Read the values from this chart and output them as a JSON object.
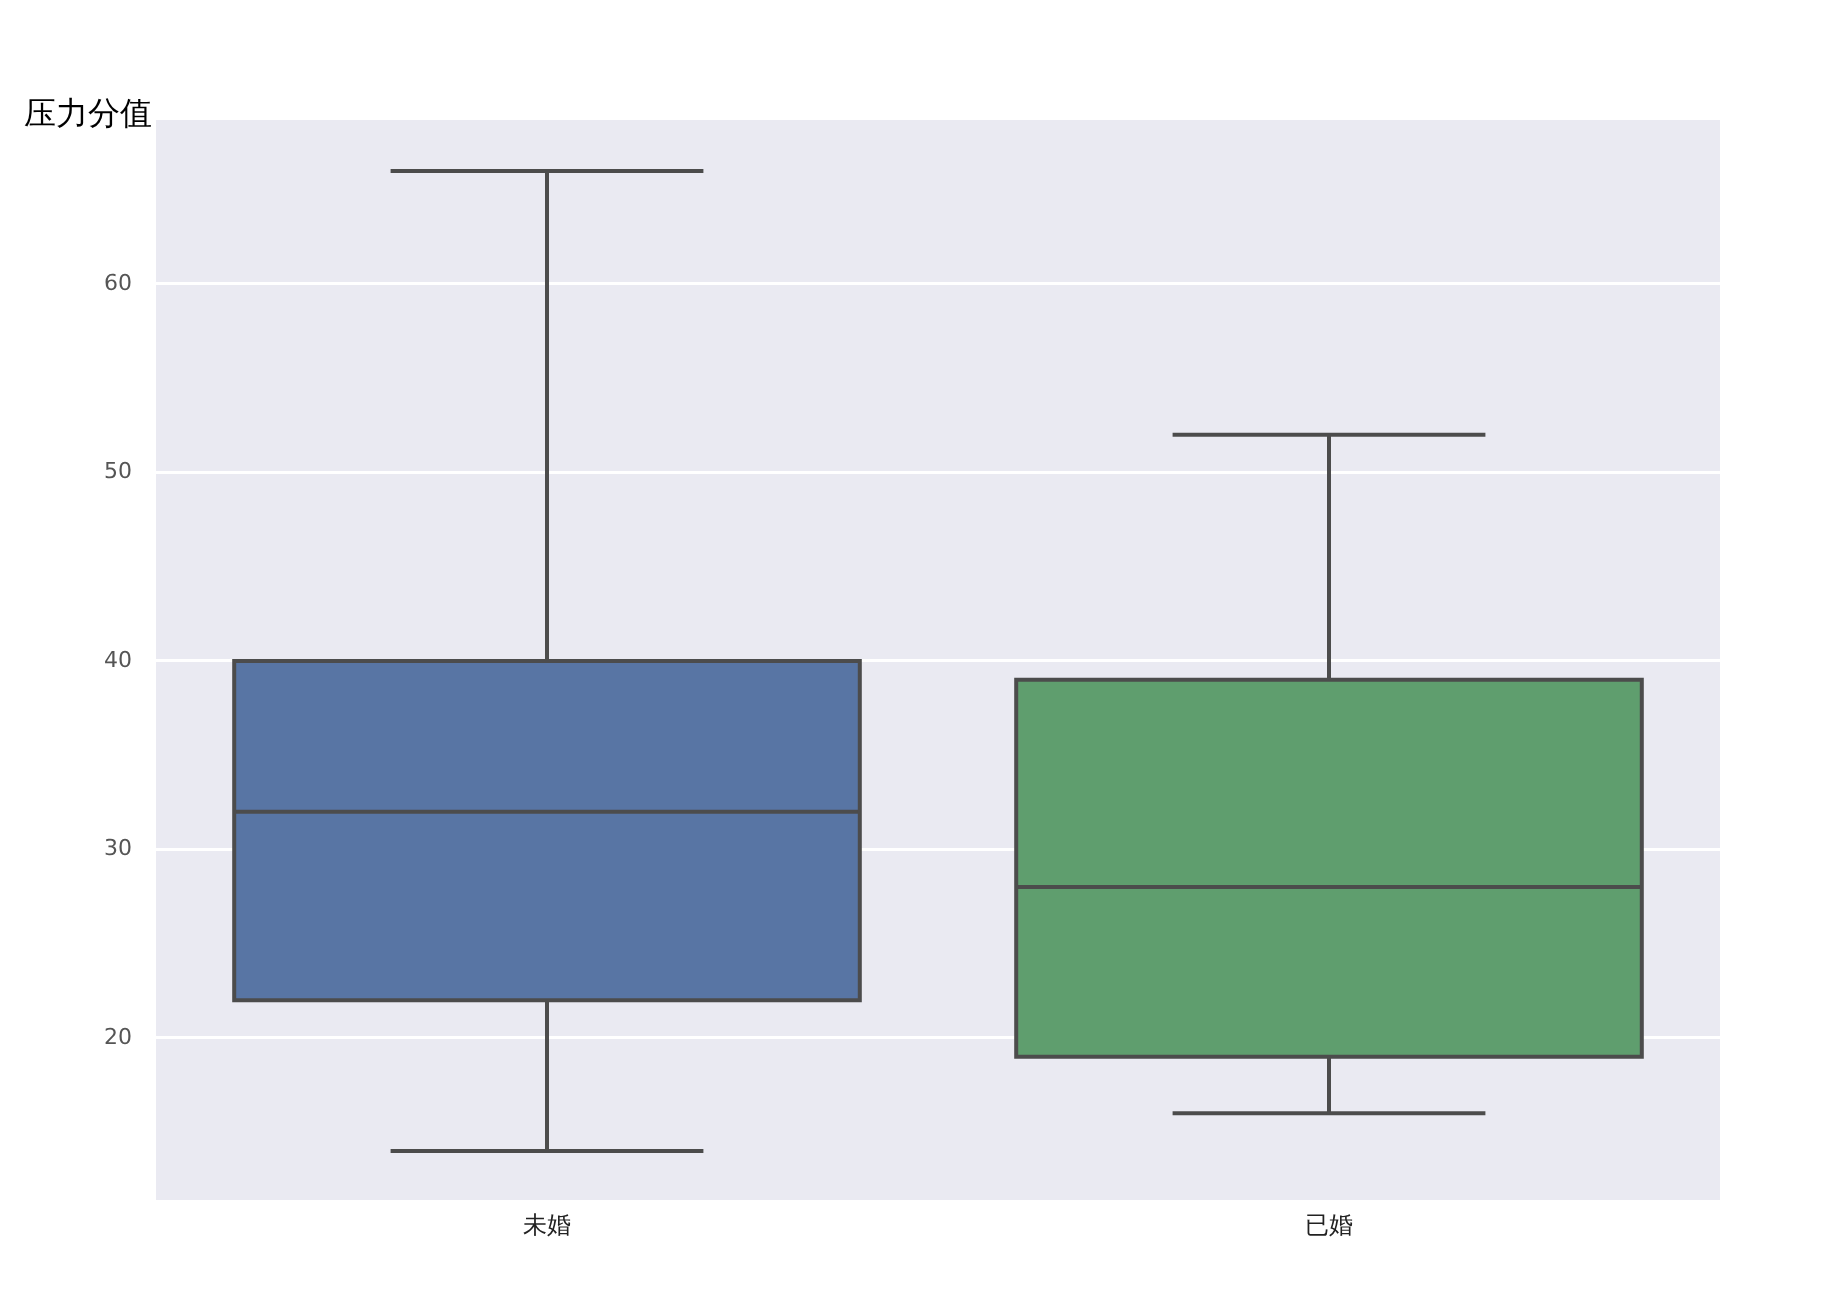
{
  "chart_data": {
    "type": "box",
    "ylabel": "压力分值",
    "categories": [
      "未婚",
      "已婚"
    ],
    "boxes": [
      {
        "low": 14,
        "q1": 22,
        "median": 32,
        "q3": 40,
        "high": 66
      },
      {
        "low": 16,
        "q1": 19,
        "median": 28,
        "q3": 39,
        "high": 52
      }
    ],
    "colors": [
      "#5875a4",
      "#5f9e6e"
    ],
    "ylim": [
      11.4,
      68.7
    ],
    "yticks": [
      20,
      30,
      40,
      50,
      60
    ],
    "grid": "y"
  }
}
